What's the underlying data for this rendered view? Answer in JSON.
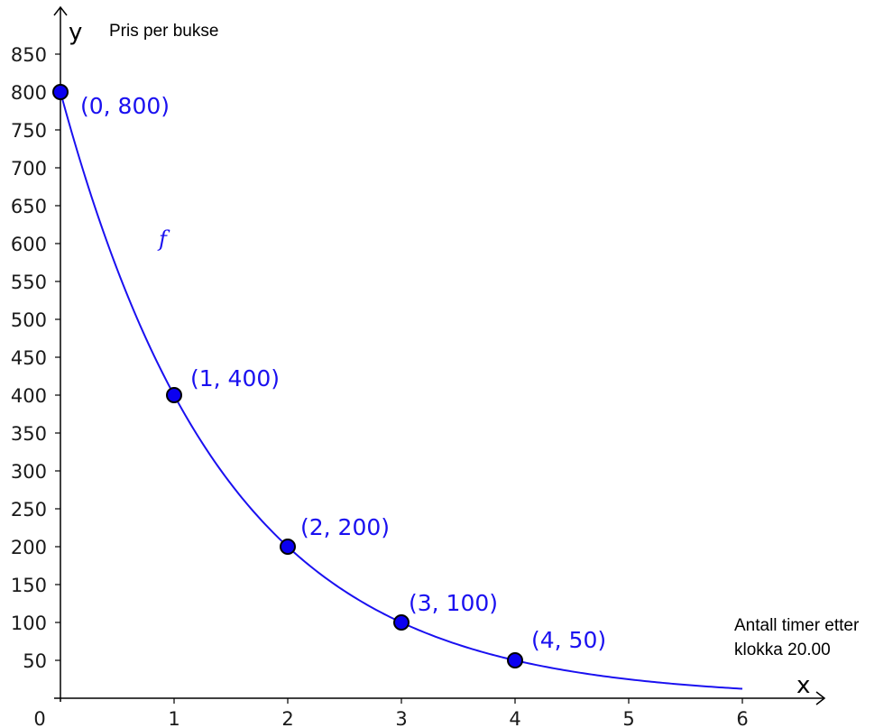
{
  "chart_data": {
    "type": "line",
    "x_axis_letter": "x",
    "y_axis_letter": "y",
    "y_title": "Pris per bukse",
    "x_title_lines": [
      "Antall timer etter",
      "klokka 20.00"
    ],
    "origin_label": "0",
    "xlim": [
      0,
      6
    ],
    "ylim": [
      0,
      850
    ],
    "x_ticks": [
      1,
      2,
      3,
      4,
      5,
      6
    ],
    "y_ticks": [
      50,
      100,
      150,
      200,
      250,
      300,
      350,
      400,
      450,
      500,
      550,
      600,
      650,
      700,
      750,
      800,
      850
    ],
    "function_label": "f",
    "function": {
      "initial": 800,
      "base": 0.5,
      "x_range": [
        0,
        6
      ]
    },
    "series": [
      {
        "points": [
          {
            "x": 0,
            "y": 800,
            "label": "(0, 800)"
          },
          {
            "x": 1,
            "y": 400,
            "label": "(1, 400)"
          },
          {
            "x": 2,
            "y": 200,
            "label": "(2, 200)"
          },
          {
            "x": 3,
            "y": 100,
            "label": "(3, 100)"
          },
          {
            "x": 4,
            "y": 50,
            "label": "(4, 50)"
          }
        ]
      }
    ],
    "colors": {
      "curve": "#1a10f0",
      "points": "#0b00f0",
      "labels": "#1a10f0"
    },
    "grid": false
  }
}
